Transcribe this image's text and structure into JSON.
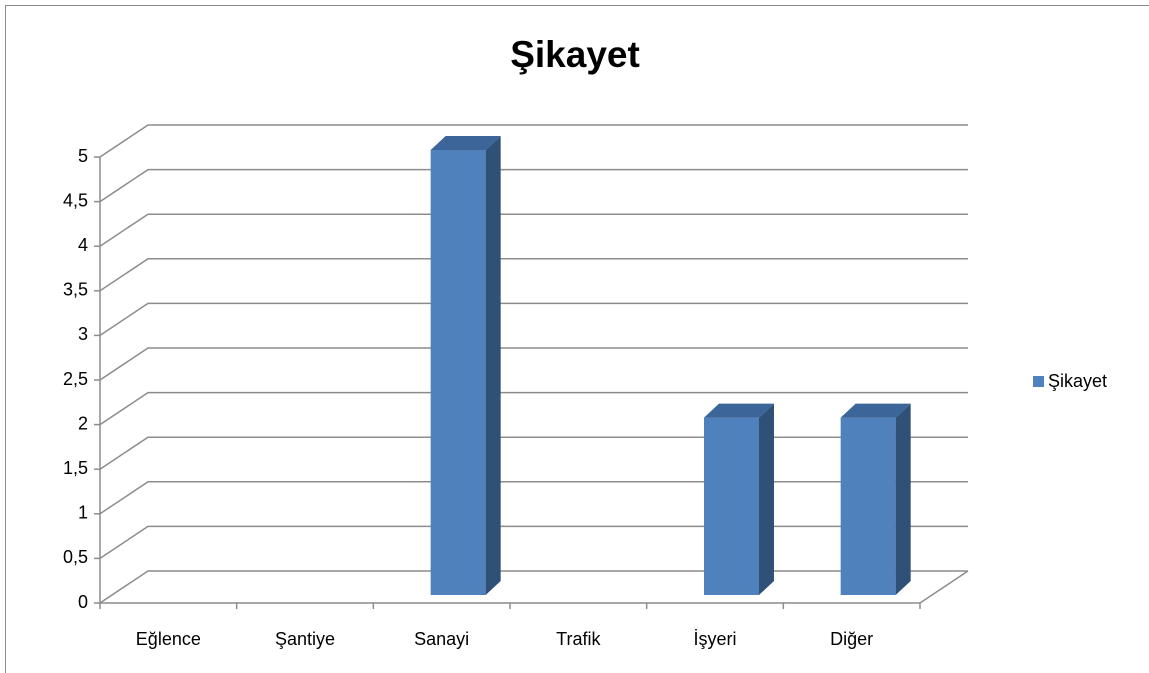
{
  "chart_data": {
    "type": "bar3d",
    "title": "Şikayet",
    "categories": [
      "Eğlence",
      "Şantiye",
      "Sanayi",
      "Trafik",
      "İşyeri",
      "Diğer"
    ],
    "series": [
      {
        "name": "Şikayet",
        "color": "#4f81bd",
        "values": [
          0,
          0,
          5,
          0,
          2,
          2
        ]
      }
    ],
    "ylim": [
      0,
      5
    ],
    "yticks": [
      0,
      {
        "value": 0.5,
        "label": "0,5"
      },
      1,
      {
        "value": 1.5,
        "label": "1,5"
      },
      2,
      {
        "value": 2.5,
        "label": "2,5"
      },
      3,
      {
        "value": 3.5,
        "label": "3,5"
      },
      4,
      {
        "value": 4.5,
        "label": "4,5"
      },
      5
    ],
    "grid": true,
    "legend": "right"
  }
}
